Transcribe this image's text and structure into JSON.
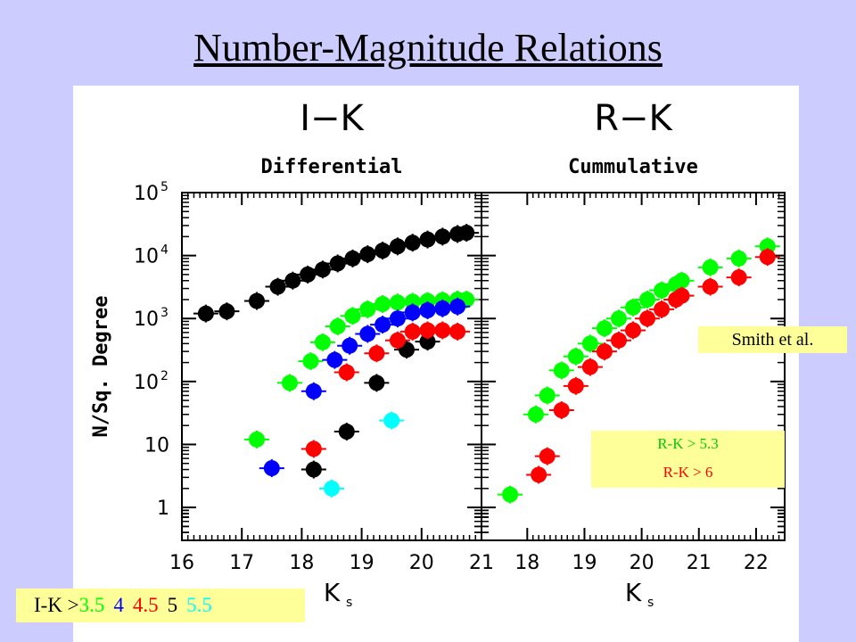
{
  "title": "Number-Magnitude Relations",
  "colors": {
    "green": "#00ff00",
    "blue": "#0000ff",
    "red": "#ff0000",
    "black": "#000000",
    "cyan": "#00ffff",
    "background": "#ccccff",
    "note_bg": "#ffff99"
  },
  "notes": {
    "smith": "Smith et al.",
    "rk_legend": [
      "R-K > 5.3",
      "R-K > 6"
    ],
    "ik_legend_prefix": "I-K >",
    "ik_legend_values": [
      "3.5",
      "4",
      "4.5",
      "5",
      "5.5"
    ]
  },
  "chart_data": [
    {
      "type": "scatter",
      "title": "I−K",
      "subtitle": "Differential",
      "xlabel": "K",
      "xlabel_sub": "s",
      "ylabel": "N/Sq. Degree",
      "xlim": [
        16,
        21
      ],
      "ylim": [
        0.3,
        100000
      ],
      "yscale": "log",
      "x_ticks": [
        "16",
        "17",
        "18",
        "19",
        "20",
        "21"
      ],
      "y_ticks": [
        {
          "v": 1,
          "label": "1"
        },
        {
          "v": 10,
          "label": "10"
        },
        {
          "v": 100,
          "label": "10",
          "sup": "2"
        },
        {
          "v": 1000,
          "label": "10",
          "sup": "3"
        },
        {
          "v": 10000,
          "label": "10",
          "sup": "4"
        },
        {
          "v": 100000,
          "label": "10",
          "sup": "5"
        }
      ],
      "series": [
        {
          "color": "black",
          "points": [
            [
              16.4,
              1200
            ],
            [
              16.75,
              1300
            ],
            [
              17.25,
              1900
            ],
            [
              17.6,
              3200
            ],
            [
              17.85,
              4000
            ],
            [
              18.1,
              5000
            ],
            [
              18.35,
              6000
            ],
            [
              18.6,
              7500
            ],
            [
              18.85,
              9000
            ],
            [
              19.1,
              10500
            ],
            [
              19.35,
              12000
            ],
            [
              19.6,
              14000
            ],
            [
              19.85,
              16000
            ],
            [
              20.1,
              18000
            ],
            [
              20.35,
              20000
            ],
            [
              20.6,
              22000
            ],
            [
              20.75,
              23000
            ],
            [
              18.2,
              4
            ],
            [
              18.75,
              16
            ],
            [
              19.25,
              95
            ],
            [
              19.75,
              320
            ],
            [
              20.1,
              430
            ]
          ]
        },
        {
          "color": "green",
          "points": [
            [
              17.25,
              12
            ],
            [
              17.8,
              95
            ],
            [
              18.15,
              210
            ],
            [
              18.35,
              420
            ],
            [
              18.6,
              750
            ],
            [
              18.85,
              1100
            ],
            [
              19.1,
              1400
            ],
            [
              19.35,
              1700
            ],
            [
              19.6,
              1800
            ],
            [
              19.85,
              1850
            ],
            [
              20.1,
              1900
            ],
            [
              20.35,
              1950
            ],
            [
              20.6,
              2000
            ],
            [
              20.75,
              2000
            ]
          ]
        },
        {
          "color": "blue",
          "points": [
            [
              17.5,
              4.2
            ],
            [
              18.2,
              70
            ],
            [
              18.55,
              220
            ],
            [
              18.8,
              370
            ],
            [
              19.1,
              570
            ],
            [
              19.35,
              800
            ],
            [
              19.6,
              1000
            ],
            [
              19.85,
              1250
            ],
            [
              20.1,
              1350
            ],
            [
              20.35,
              1450
            ],
            [
              20.6,
              1550
            ]
          ]
        },
        {
          "color": "red",
          "points": [
            [
              18.2,
              8.5
            ],
            [
              18.75,
              140
            ],
            [
              19.25,
              280
            ],
            [
              19.6,
              450
            ],
            [
              19.85,
              620
            ],
            [
              20.1,
              650
            ],
            [
              20.35,
              650
            ],
            [
              20.6,
              620
            ]
          ]
        },
        {
          "color": "cyan",
          "points": [
            [
              18.5,
              2
            ],
            [
              19.5,
              24
            ]
          ]
        }
      ]
    },
    {
      "type": "scatter",
      "title": "R−K",
      "subtitle": "Cummulative",
      "xlabel": "K",
      "xlabel_sub": "s",
      "xlim": [
        17.2,
        22.5
      ],
      "ylim": [
        0.3,
        100000
      ],
      "yscale": "log",
      "x_ticks": [
        "18",
        "19",
        "20",
        "21",
        "22"
      ],
      "series": [
        {
          "color": "green",
          "points": [
            [
              17.7,
              1.6
            ],
            [
              18.15,
              30
            ],
            [
              18.35,
              60
            ],
            [
              18.6,
              150
            ],
            [
              18.85,
              250
            ],
            [
              19.1,
              400
            ],
            [
              19.35,
              700
            ],
            [
              19.6,
              1000
            ],
            [
              19.85,
              1500
            ],
            [
              20.1,
              2000
            ],
            [
              20.35,
              2800
            ],
            [
              20.6,
              3500
            ],
            [
              20.7,
              4000
            ],
            [
              21.2,
              6500
            ],
            [
              21.7,
              9000
            ],
            [
              22.2,
              14000
            ]
          ]
        },
        {
          "color": "red",
          "points": [
            [
              18.2,
              3.3
            ],
            [
              18.35,
              6.5
            ],
            [
              18.6,
              35
            ],
            [
              18.85,
              85
            ],
            [
              19.1,
              170
            ],
            [
              19.35,
              300
            ],
            [
              19.6,
              450
            ],
            [
              19.85,
              650
            ],
            [
              20.1,
              1000
            ],
            [
              20.35,
              1400
            ],
            [
              20.6,
              2000
            ],
            [
              20.7,
              2300
            ],
            [
              21.2,
              3200
            ],
            [
              21.7,
              4500
            ],
            [
              22.2,
              9500
            ]
          ]
        }
      ]
    }
  ]
}
